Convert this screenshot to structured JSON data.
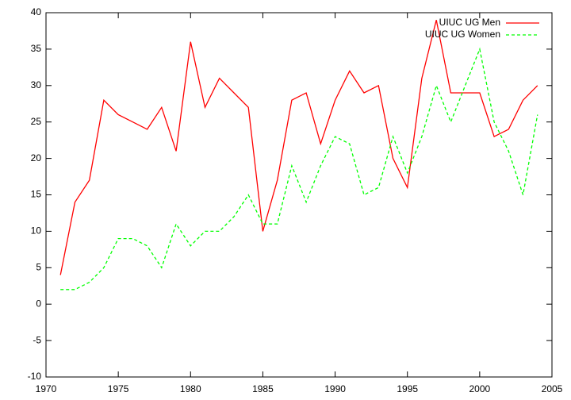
{
  "chart_data": {
    "type": "line",
    "x": [
      1971,
      1972,
      1973,
      1974,
      1975,
      1976,
      1977,
      1978,
      1979,
      1980,
      1981,
      1982,
      1983,
      1984,
      1985,
      1986,
      1987,
      1988,
      1989,
      1990,
      1991,
      1992,
      1993,
      1994,
      1995,
      1996,
      1997,
      1998,
      1999,
      2000,
      2001,
      2002,
      2003,
      2004
    ],
    "series": [
      {
        "name": "UIUC UG Men",
        "color": "#ff0000",
        "dash": "none",
        "values": [
          4,
          14,
          17,
          28,
          26,
          25,
          24,
          27,
          21,
          36,
          27,
          31,
          29,
          27,
          10,
          17,
          28,
          29,
          22,
          28,
          32,
          29,
          30,
          20,
          16,
          31,
          39,
          29,
          29,
          29,
          23,
          24,
          28,
          30
        ]
      },
      {
        "name": "UIUC UG Women",
        "color": "#00ff00",
        "dash": "4,3",
        "values": [
          2,
          2,
          3,
          5,
          9,
          9,
          8,
          5,
          11,
          8,
          10,
          10,
          12,
          15,
          11,
          11,
          19,
          14,
          19,
          23,
          22,
          15,
          16,
          23,
          18,
          23,
          30,
          25,
          30,
          35,
          25,
          21,
          15,
          26
        ]
      }
    ],
    "xlim": [
      1970,
      2005
    ],
    "xticks": [
      1970,
      1975,
      1980,
      1985,
      1990,
      1995,
      2000,
      2005
    ],
    "ylim": [
      -10,
      40
    ],
    "yticks": [
      -10,
      -5,
      0,
      5,
      10,
      15,
      20,
      25,
      30,
      35,
      40
    ],
    "legend": "top-right"
  }
}
